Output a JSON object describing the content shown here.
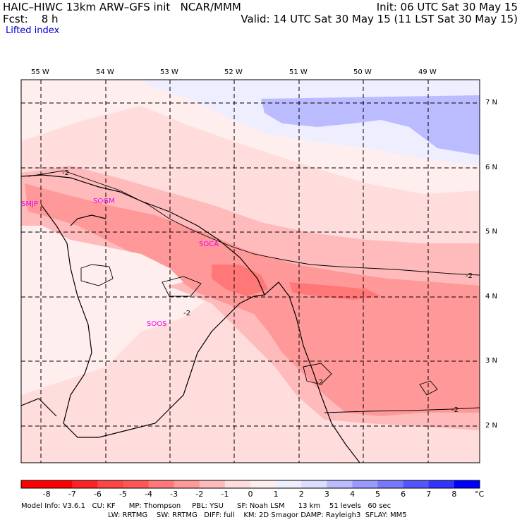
{
  "header": {
    "title": "HAIC–HIWC 13km ARW–GFS init   NCAR/MMM",
    "init": "Init: 06 UTC Sat 30 May 15",
    "fcst": "Fcst:    8 h",
    "valid": "Valid: 14 UTC Sat 30 May 15 (11 LST Sat 30 May 15)",
    "field": "Lifted index"
  },
  "axes": {
    "lon_labels": [
      "55 W",
      "54 W",
      "53 W",
      "52 W",
      "51 W",
      "50 W",
      "49 W"
    ],
    "lat_labels": [
      "7 N",
      "6 N",
      "5 N",
      "4 N",
      "3 N",
      "2 N"
    ]
  },
  "stations": [
    "SMJP",
    "SOGM",
    "SOCA",
    "SOOS"
  ],
  "contour_labels": [
    "-2",
    "-2",
    "-2",
    "-2",
    "-2"
  ],
  "colorbar": {
    "labels": [
      "-8",
      "-7",
      "-6",
      "-5",
      "-4",
      "-3",
      "-2",
      "-1",
      "0",
      "1",
      "2",
      "3",
      "4",
      "5",
      "6",
      "7",
      "8"
    ],
    "unit": "°C",
    "colors": [
      "#ff0000",
      "#ff2222",
      "#ff4444",
      "#ff5555",
      "#ff7777",
      "#ff9999",
      "#ffbbbb",
      "#ffdddd",
      "#ffeeee",
      "#eeeeff",
      "#ddddff",
      "#bbbbff",
      "#9999ff",
      "#7777ff",
      "#5555ff",
      "#3333ff",
      "#0000ff"
    ]
  },
  "footer": {
    "line1": "Model Info: V3.6.1   CU: KF      MP: Thompson     PBL: YSU      SF: Noah LSM      13 km    51 levels   60 sec",
    "line2": "LW: RRTMG    SW: RRTMG   DIFF: full    KM: 2D Smagor DAMP: Rayleigh3  SFLAY: MM5"
  }
}
